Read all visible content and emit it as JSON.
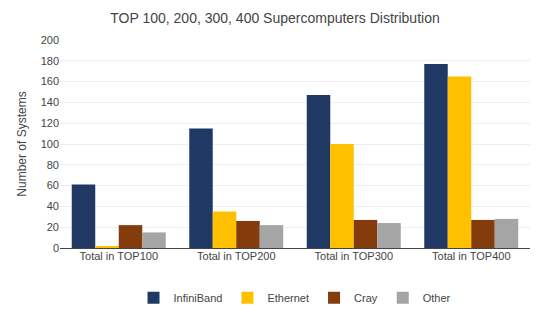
{
  "chart_data": {
    "type": "bar",
    "title": "TOP 100, 200, 300, 400 Supercomputers Distribution",
    "ylabel": "Number of Systems",
    "categories": [
      "Total in TOP100",
      "Total in TOP200",
      "Total in TOP300",
      "Total in TOP400"
    ],
    "series": [
      {
        "name": "InfiniBand",
        "color": "#1F3864",
        "values": [
          61,
          115,
          147,
          177
        ]
      },
      {
        "name": "Ethernet",
        "color": "#FFC000",
        "values": [
          1,
          35,
          100,
          165
        ]
      },
      {
        "name": "Cray",
        "color": "#843C0C",
        "values": [
          22,
          26,
          27,
          27
        ]
      },
      {
        "name": "Other",
        "color": "#A5A5A5",
        "values": [
          15,
          22,
          24,
          28
        ]
      }
    ],
    "ylim": [
      0,
      200
    ],
    "yticks": [
      0,
      20,
      40,
      60,
      80,
      100,
      120,
      140,
      160,
      180,
      200
    ],
    "grid": true,
    "legend": "bottom"
  }
}
